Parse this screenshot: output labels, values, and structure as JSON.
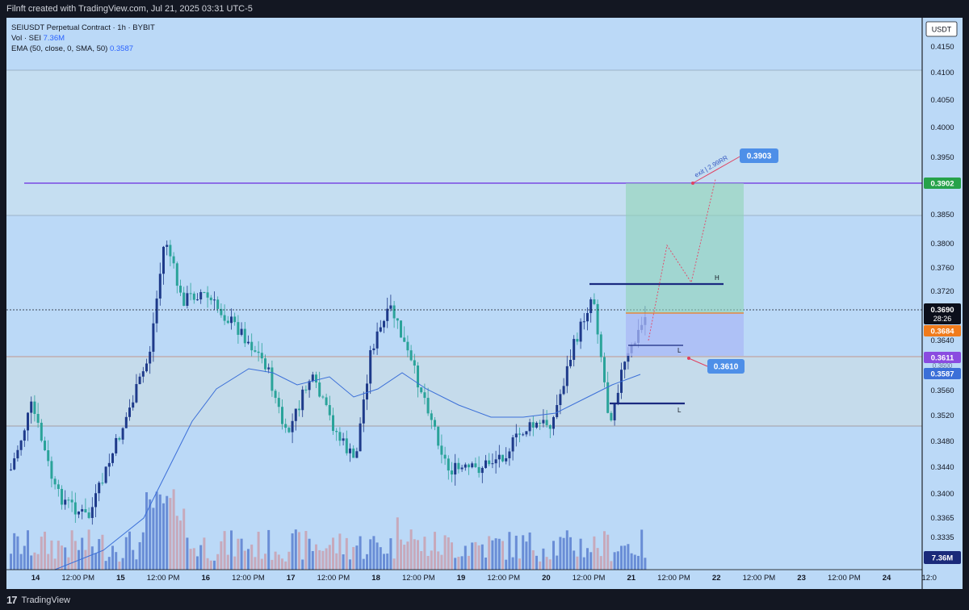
{
  "header": {
    "attribution": "Filnft created with TradingView.com, Jul 21, 2025 03:31 UTC-5"
  },
  "legend": {
    "symbol": "SEIUSDT Perpetual Contract · 1h · BYBIT",
    "vol_label": "Vol · SEI",
    "vol_value": "7.36M",
    "ema_label": "EMA (50, close, 0, SMA, 50)",
    "ema_value": "0.3587"
  },
  "axis": {
    "currency": "USDT",
    "price_ticks": [
      "0.4150",
      "0.4100",
      "0.4050",
      "0.4000",
      "0.3950",
      "0.3850",
      "0.3800",
      "0.3760",
      "0.3720",
      "0.3640",
      "0.3560",
      "0.3520",
      "0.3480",
      "0.3440",
      "0.3400",
      "0.3365",
      "0.3335"
    ],
    "time_ticks": [
      "14",
      "12:00 PM",
      "15",
      "12:00 PM",
      "16",
      "12:00 PM",
      "17",
      "12:00 PM",
      "18",
      "12:00 PM",
      "19",
      "12:00 PM",
      "20",
      "12:00 PM",
      "21",
      "12:00 PM",
      "22",
      "12:00 PM",
      "23",
      "12:00 PM",
      "24",
      "12:0"
    ]
  },
  "price_tags": {
    "resistance": "0.3902",
    "last": "0.3690",
    "countdown": "28:26",
    "entry": "0.3684",
    "ema_tag": "0.3611",
    "ema_value": "0.3587",
    "volume": "7.36M",
    "hidden": "0.3600"
  },
  "annotations": {
    "target_label": "0.3903",
    "stop_label": "0.3610",
    "exit_text": "exit | 2.99RR",
    "high_label": "H",
    "low_label_1": "L",
    "low_label_2": "L"
  },
  "footer": {
    "brand": "TradingView"
  },
  "colors": {
    "background": "#bbd9f7",
    "bull": "#1e3a8a",
    "bear": "#2aa39a",
    "ema": "#3b6fd8",
    "resistance": "#6a2be0",
    "target_zone": "#8fd3b7",
    "stop_zone": "#a9b8f5",
    "entry_line": "#f07b1c",
    "tag_blue": "#4e8fe8"
  }
}
